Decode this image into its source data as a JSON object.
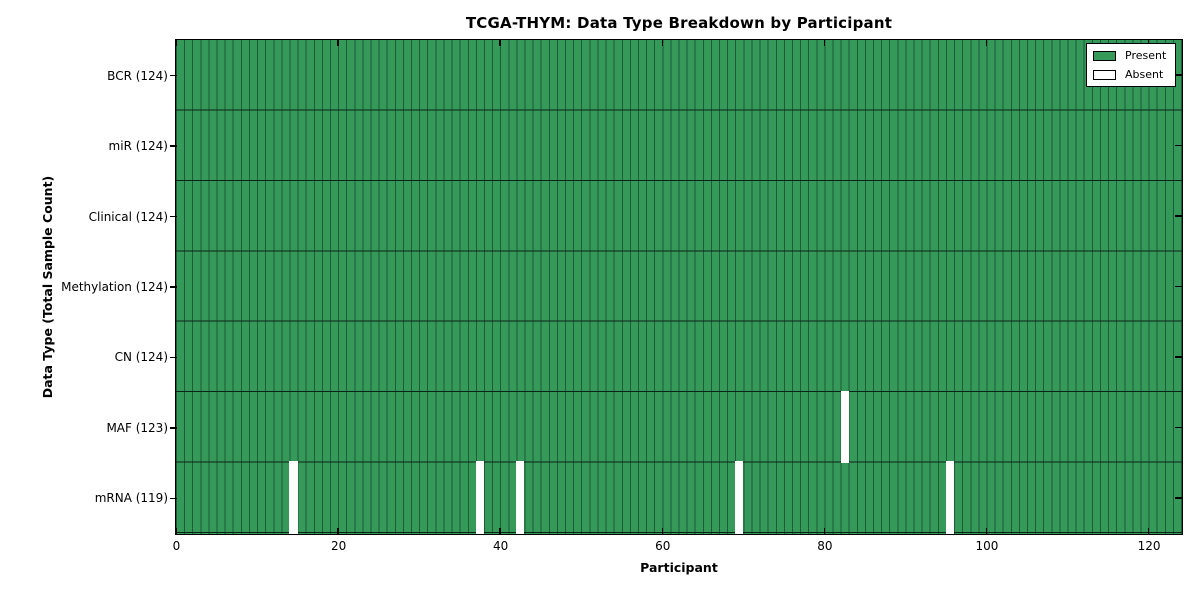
{
  "title": "TCGA-THYM: Data Type Breakdown by Participant",
  "x_axis": {
    "label": "Participant",
    "tick_labels": [
      "0",
      "20",
      "40",
      "60",
      "80",
      "100",
      "120"
    ],
    "tick_values": [
      0,
      20,
      40,
      60,
      80,
      100,
      120
    ],
    "range": [
      0,
      124
    ]
  },
  "y_axis": {
    "label": "Data Type (Total Sample Count)"
  },
  "legend": {
    "present": "Present",
    "absent": "Absent"
  },
  "colors": {
    "present": "#349959",
    "absent": "#ffffff",
    "cell_edge": "#1e5c38",
    "row_line": "#0a2416",
    "spine": "#000000",
    "legend_border": "#000000"
  },
  "chart_data": {
    "type": "heatmap",
    "title": "TCGA-THYM: Data Type Breakdown by Participant",
    "xlabel": "Participant",
    "ylabel": "Data Type (Total Sample Count)",
    "x_range": [
      0,
      124
    ],
    "n_participants": 124,
    "legend_entries": [
      "Present",
      "Absent"
    ],
    "legend_position": "upper right",
    "grid": false,
    "rows": [
      {
        "label": "BCR (124)",
        "data_type": "BCR",
        "total_samples": 124,
        "absent_participants": []
      },
      {
        "label": "miR (124)",
        "data_type": "miR",
        "total_samples": 124,
        "absent_participants": []
      },
      {
        "label": "Clinical (124)",
        "data_type": "Clinical",
        "total_samples": 124,
        "absent_participants": []
      },
      {
        "label": "Methylation (124)",
        "data_type": "Methylation",
        "total_samples": 124,
        "absent_participants": []
      },
      {
        "label": "CN (124)",
        "data_type": "CN",
        "total_samples": 124,
        "absent_participants": []
      },
      {
        "label": "MAF (123)",
        "data_type": "MAF",
        "total_samples": 123,
        "absent_participants": [
          82
        ]
      },
      {
        "label": "mRNA (119)",
        "data_type": "mRNA",
        "total_samples": 119,
        "absent_participants": [
          14,
          37,
          42,
          69,
          95
        ]
      }
    ]
  }
}
